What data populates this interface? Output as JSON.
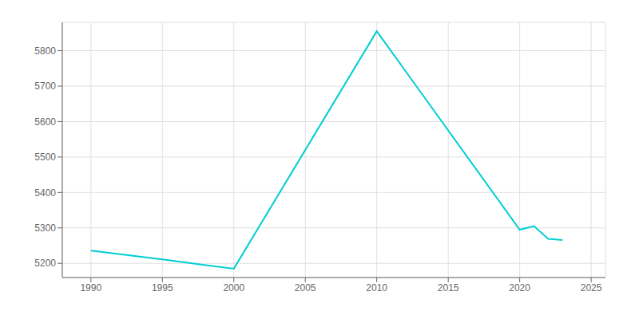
{
  "chart_data": {
    "type": "line",
    "x": [
      1990,
      1995,
      2000,
      2010,
      2020,
      2021,
      2022,
      2023
    ],
    "values": [
      5236,
      5211,
      5185,
      5855,
      5295,
      5305,
      5269,
      5266
    ],
    "color": "#00CED1",
    "xlim": [
      1988,
      2026
    ],
    "ylim": [
      5160,
      5880
    ],
    "xticks": [
      1990,
      1995,
      2000,
      2005,
      2010,
      2015,
      2020,
      2025
    ],
    "yticks": [
      5200,
      5300,
      5400,
      5500,
      5600,
      5700,
      5800
    ],
    "grid": true
  }
}
